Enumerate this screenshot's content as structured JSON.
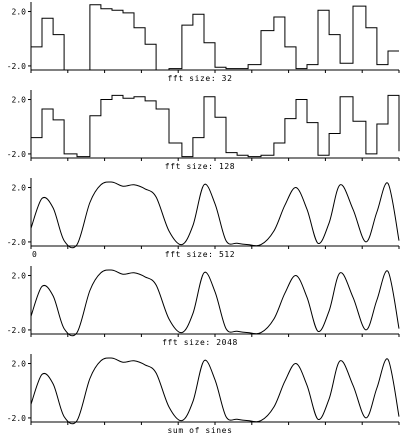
{
  "chart_data": [
    {
      "type": "line",
      "caption": "fft size: 32",
      "yticks": [
        "2.0",
        "-2.0"
      ],
      "ylim": [
        -2.3,
        2.7
      ],
      "step": true,
      "x": [
        0.0,
        0.03,
        0.06,
        0.09,
        0.125,
        0.16,
        0.19,
        0.22,
        0.25,
        0.28,
        0.31,
        0.34,
        0.375,
        0.41,
        0.44,
        0.47,
        0.5,
        0.53,
        0.56,
        0.59,
        0.625,
        0.66,
        0.69,
        0.72,
        0.75,
        0.78,
        0.81,
        0.84,
        0.875,
        0.91,
        0.94,
        0.97
      ],
      "y": [
        -0.6,
        1.5,
        0.3,
        -2.3,
        -2.3,
        2.5,
        2.2,
        2.1,
        1.9,
        0.8,
        -0.4,
        -2.3,
        -2.2,
        1.0,
        1.8,
        -0.3,
        -2.1,
        -2.2,
        -2.2,
        -1.9,
        0.6,
        1.6,
        -0.6,
        -2.2,
        -1.9,
        2.1,
        0.3,
        -1.8,
        2.4,
        0.8,
        -1.9,
        -0.9
      ]
    },
    {
      "type": "line",
      "caption": "fft size: 128",
      "yticks": [
        "2.0",
        "-2.0"
      ],
      "ylim": [
        -2.3,
        2.7
      ],
      "step": true,
      "x": [
        0.0,
        0.03,
        0.06,
        0.09,
        0.125,
        0.16,
        0.19,
        0.22,
        0.25,
        0.28,
        0.31,
        0.34,
        0.375,
        0.41,
        0.44,
        0.47,
        0.5,
        0.53,
        0.56,
        0.59,
        0.625,
        0.66,
        0.69,
        0.72,
        0.75,
        0.78,
        0.81,
        0.84,
        0.875,
        0.91,
        0.94,
        0.97,
        1.0
      ],
      "y": [
        -0.8,
        1.3,
        0.5,
        -2.0,
        -2.2,
        0.8,
        2.0,
        2.3,
        2.1,
        2.2,
        1.9,
        1.3,
        -1.2,
        -2.2,
        -0.8,
        2.2,
        0.7,
        -1.9,
        -2.1,
        -2.2,
        -2.1,
        -1.2,
        0.6,
        2.0,
        0.3,
        -2.1,
        -0.5,
        2.2,
        0.4,
        -2.0,
        0.2,
        2.3,
        -1.8
      ]
    },
    {
      "type": "line",
      "caption": "fft size: 512",
      "yticks": [
        "2.0",
        "-2.0"
      ],
      "ylim": [
        -2.3,
        2.7
      ],
      "step": false,
      "x": [
        0.0,
        0.03,
        0.06,
        0.09,
        0.125,
        0.16,
        0.19,
        0.22,
        0.25,
        0.28,
        0.31,
        0.34,
        0.375,
        0.41,
        0.44,
        0.47,
        0.5,
        0.53,
        0.56,
        0.59,
        0.625,
        0.66,
        0.69,
        0.72,
        0.75,
        0.78,
        0.81,
        0.84,
        0.875,
        0.91,
        0.94,
        0.97,
        1.0
      ],
      "y": [
        -1.0,
        1.2,
        0.5,
        -1.9,
        -2.2,
        0.9,
        2.2,
        2.4,
        2.1,
        2.2,
        1.9,
        1.3,
        -1.2,
        -2.2,
        -0.8,
        2.2,
        0.8,
        -1.9,
        -2.1,
        -2.2,
        -2.2,
        -1.2,
        0.7,
        2.0,
        0.4,
        -2.1,
        -0.6,
        2.2,
        0.4,
        -2.0,
        0.2,
        2.3,
        -1.9
      ]
    },
    {
      "type": "line",
      "caption": "fft size: 2048",
      "yticks": [
        "2.0",
        "-2.0"
      ],
      "ylim": [
        -2.3,
        2.7
      ],
      "step": false,
      "x": [
        0.0,
        0.03,
        0.06,
        0.09,
        0.125,
        0.16,
        0.19,
        0.22,
        0.25,
        0.28,
        0.31,
        0.34,
        0.375,
        0.41,
        0.44,
        0.47,
        0.5,
        0.53,
        0.56,
        0.59,
        0.625,
        0.66,
        0.69,
        0.72,
        0.75,
        0.78,
        0.81,
        0.84,
        0.875,
        0.91,
        0.94,
        0.97,
        1.0
      ],
      "y": [
        -1.0,
        1.2,
        0.5,
        -1.9,
        -2.2,
        0.9,
        2.2,
        2.4,
        2.1,
        2.2,
        1.9,
        1.3,
        -1.2,
        -2.2,
        -0.8,
        2.2,
        0.8,
        -1.9,
        -2.1,
        -2.2,
        -2.2,
        -1.2,
        0.7,
        2.0,
        0.4,
        -2.1,
        -0.6,
        2.2,
        0.4,
        -2.0,
        0.2,
        2.3,
        -1.9
      ]
    },
    {
      "type": "line",
      "caption": "sum of sines",
      "yticks": [
        "2.0",
        "-2.0"
      ],
      "ylim": [
        -2.3,
        2.7
      ],
      "step": false,
      "x": [
        0.0,
        0.03,
        0.06,
        0.09,
        0.125,
        0.16,
        0.19,
        0.22,
        0.25,
        0.28,
        0.31,
        0.34,
        0.375,
        0.41,
        0.44,
        0.47,
        0.5,
        0.53,
        0.56,
        0.59,
        0.625,
        0.66,
        0.69,
        0.72,
        0.75,
        0.78,
        0.81,
        0.84,
        0.875,
        0.91,
        0.94,
        0.97,
        1.0
      ],
      "y": [
        -1.0,
        1.2,
        0.5,
        -1.9,
        -2.2,
        0.9,
        2.2,
        2.4,
        2.1,
        2.2,
        1.9,
        1.3,
        -1.2,
        -2.2,
        -0.8,
        2.2,
        0.8,
        -1.9,
        -2.1,
        -2.2,
        -2.2,
        -1.2,
        0.7,
        2.0,
        0.4,
        -2.1,
        -0.6,
        2.2,
        0.4,
        -2.0,
        0.2,
        2.3,
        -1.9
      ]
    }
  ],
  "stray_label": "0"
}
